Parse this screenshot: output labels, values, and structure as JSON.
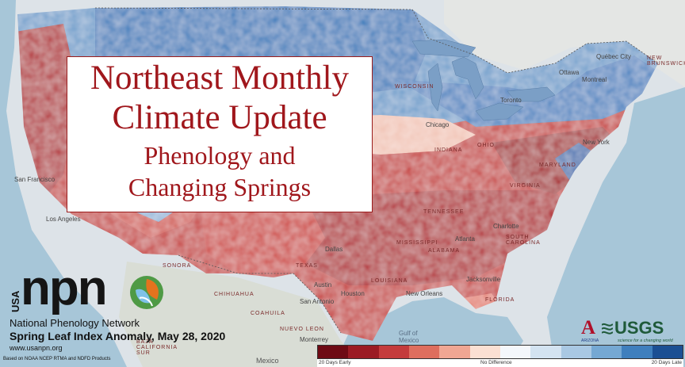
{
  "title": {
    "line1": "Northeast Monthly",
    "line2": "Climate Update",
    "line3": "Phenology and",
    "line4": "Changing Springs"
  },
  "branding": {
    "usa": "USA",
    "npn": "npn",
    "name": "National Phenology Network",
    "caption": "Spring Leaf Index Anomaly, May 28, 2020",
    "url": "www.usanpn.org",
    "footnote": "Based on NOAA NCEP RTMA and NDFD Products",
    "ua_tag": "ARIZONA",
    "usgs": "USGS",
    "usgs_tag": "science for a changing world"
  },
  "legend": {
    "early": "20 Days Early",
    "none": "No Difference",
    "late": "20 Days Late",
    "colors": [
      "#6e0a14",
      "#9b1b24",
      "#c43b3c",
      "#de6e5e",
      "#f0a693",
      "#fbe0d3",
      "#f4f7fb",
      "#d3e3f1",
      "#a9c8e3",
      "#75a8d3",
      "#3f7fbd",
      "#1b4f93"
    ]
  },
  "places": {
    "quebec": "Québec City",
    "new_brunswick": "NEW\nBRUNSWICK",
    "ottawa": "Ottawa",
    "montreal": "Montreal",
    "toronto": "Toronto",
    "wisconsin": "WISCONSIN",
    "chicago": "Chicago",
    "indiana": "INDIANA",
    "ohio": "OHIO",
    "new_york": "New York",
    "maryland": "MARYLAND",
    "virginia": "VIRGINIA",
    "tennessee": "TENNESSEE",
    "charlotte": "Charlotte",
    "south_carolina": "SOUTH\nCAROLINA",
    "mississippi": "MISSISSIPPI",
    "alabama": "ALABAMA",
    "atlanta": "Atlanta",
    "louisiana": "LOUISIANA",
    "new_orleans": "New Orleans",
    "jacksonville": "Jacksonville",
    "florida": "FLORIDA",
    "dallas": "Dallas",
    "austin": "Austin",
    "houston": "Houston",
    "texas": "TEXAS",
    "san_antonio": "San Antonio",
    "chihuahua": "CHIHUAHUA",
    "nuevo_leon": "NUEVO LEON",
    "coahuila": "COAHUILA",
    "mexico": "Mexico",
    "gulf": "Gulf of\nMexico",
    "sonora": "SONORA",
    "baja": "BAJA\nCALIFORNIA SUR",
    "monterrey": "Monterrey",
    "los_angeles": "Los Angeles",
    "sf": "San Francisco"
  }
}
